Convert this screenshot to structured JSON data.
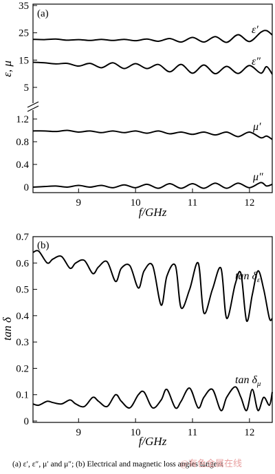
{
  "caption": "(a) ε′, ε″, μ′   and μ″; (b) Electrical and magnetic loss angles tangent",
  "watermark": "@有色金属在线",
  "chart_data": [
    {
      "type": "line",
      "panel": "(a)",
      "xlabel": "f/GHz",
      "ylabel": "ε, μ",
      "xlim": [
        8.2,
        12.4
      ],
      "x_ticks": [
        "9",
        "10",
        "11",
        "12"
      ],
      "grid": false,
      "broken_y_axis": true,
      "upper": {
        "ylim": [
          0,
          35
        ],
        "y_ticks": [
          "35",
          "25",
          "15",
          "5"
        ],
        "series": [
          {
            "name": "ε′",
            "x": [
              8.2,
              8.4,
              8.6,
              8.8,
              9.0,
              9.2,
              9.4,
              9.6,
              9.8,
              10.0,
              10.2,
              10.4,
              10.6,
              10.8,
              11.0,
              11.2,
              11.4,
              11.6,
              11.8,
              12.0,
              12.2,
              12.3,
              12.4
            ],
            "y": [
              22.6,
              22.5,
              22.7,
              22.3,
              22.5,
              22.2,
              22.6,
              22.2,
              22.6,
              22.1,
              22.7,
              21.9,
              22.9,
              21.6,
              23.3,
              21.6,
              23.6,
              21.5,
              24.3,
              21.8,
              25.2,
              25.8,
              24.2
            ]
          },
          {
            "name": "ε″",
            "x": [
              8.2,
              8.4,
              8.6,
              8.8,
              9.0,
              9.2,
              9.4,
              9.6,
              9.8,
              10.0,
              10.2,
              10.4,
              10.6,
              10.8,
              11.0,
              11.2,
              11.4,
              11.6,
              11.8,
              12.0,
              12.2,
              12.3,
              12.4
            ],
            "y": [
              14.2,
              14.0,
              13.6,
              13.8,
              12.8,
              13.8,
              12.2,
              14.0,
              11.9,
              13.7,
              11.9,
              13.4,
              10.7,
              13.4,
              10.2,
              13.2,
              10.0,
              12.7,
              10.1,
              13.0,
              10.2,
              12.6,
              9.8
            ]
          }
        ]
      },
      "lower": {
        "ylim": [
          -0.05,
          1.35
        ],
        "y_ticks": [
          "1.2",
          "0.8",
          "0.4",
          "0"
        ],
        "series": [
          {
            "name": "μ′",
            "x": [
              8.2,
              8.4,
              8.6,
              8.8,
              9.0,
              9.2,
              9.4,
              9.6,
              9.8,
              10.0,
              10.2,
              10.4,
              10.6,
              10.8,
              11.0,
              11.2,
              11.4,
              11.6,
              11.8,
              12.0,
              12.2,
              12.3,
              12.4
            ],
            "y": [
              0.99,
              0.99,
              0.98,
              1.0,
              0.97,
              0.99,
              0.96,
              0.99,
              0.96,
              0.99,
              0.95,
              0.99,
              0.94,
              0.97,
              0.93,
              0.97,
              0.92,
              0.97,
              0.89,
              0.97,
              0.87,
              0.9,
              0.84
            ]
          },
          {
            "name": "μ″",
            "x": [
              8.2,
              8.4,
              8.6,
              8.8,
              9.0,
              9.2,
              9.4,
              9.6,
              9.8,
              10.0,
              10.2,
              10.4,
              10.6,
              10.8,
              11.0,
              11.2,
              11.4,
              11.6,
              11.8,
              12.0,
              12.2,
              12.3,
              12.4
            ],
            "y": [
              0.0,
              0.01,
              0.02,
              0.0,
              0.03,
              0.0,
              0.03,
              -0.01,
              0.04,
              -0.01,
              0.05,
              -0.02,
              0.06,
              -0.02,
              0.06,
              -0.02,
              0.07,
              -0.02,
              0.07,
              -0.01,
              0.08,
              0.02,
              0.05
            ]
          }
        ]
      }
    },
    {
      "type": "line",
      "panel": "(b)",
      "xlabel": "f/GHz",
      "ylabel": "tan δ",
      "xlim": [
        8.2,
        12.4
      ],
      "ylim": [
        0,
        0.7
      ],
      "x_ticks": [
        "9",
        "10",
        "11",
        "12"
      ],
      "y_ticks": [
        "0.7",
        "0.6",
        "0.5",
        "0.4",
        "0.3",
        "0.2",
        "0.1",
        "0"
      ],
      "grid": false,
      "series": [
        {
          "name": "tan δε",
          "x": [
            8.2,
            8.3,
            8.45,
            8.55,
            8.7,
            8.85,
            8.95,
            9.1,
            9.25,
            9.35,
            9.5,
            9.65,
            9.75,
            9.9,
            10.05,
            10.15,
            10.3,
            10.45,
            10.55,
            10.7,
            10.8,
            10.95,
            11.1,
            11.2,
            11.35,
            11.5,
            11.6,
            11.75,
            11.85,
            11.95,
            12.05,
            12.15,
            12.25,
            12.35,
            12.4
          ],
          "y": [
            0.64,
            0.645,
            0.6,
            0.615,
            0.625,
            0.58,
            0.6,
            0.61,
            0.56,
            0.585,
            0.605,
            0.53,
            0.58,
            0.59,
            0.505,
            0.57,
            0.59,
            0.44,
            0.55,
            0.59,
            0.43,
            0.5,
            0.6,
            0.41,
            0.5,
            0.58,
            0.39,
            0.52,
            0.56,
            0.38,
            0.48,
            0.57,
            0.5,
            0.39,
            0.39
          ]
        },
        {
          "name": "tan δμ",
          "x": [
            8.2,
            8.3,
            8.45,
            8.55,
            8.7,
            8.85,
            8.95,
            9.1,
            9.25,
            9.35,
            9.5,
            9.65,
            9.75,
            9.9,
            10.05,
            10.15,
            10.3,
            10.45,
            10.55,
            10.7,
            10.8,
            10.95,
            11.1,
            11.2,
            11.35,
            11.5,
            11.6,
            11.75,
            11.85,
            11.95,
            12.05,
            12.15,
            12.25,
            12.35,
            12.4
          ],
          "y": [
            0.065,
            0.06,
            0.075,
            0.07,
            0.065,
            0.08,
            0.065,
            0.055,
            0.09,
            0.075,
            0.055,
            0.1,
            0.075,
            0.05,
            0.1,
            0.11,
            0.05,
            0.08,
            0.12,
            0.05,
            0.075,
            0.125,
            0.05,
            0.09,
            0.12,
            0.04,
            0.09,
            0.13,
            0.09,
            0.04,
            0.12,
            0.04,
            0.09,
            0.06,
            0.11
          ]
        }
      ]
    }
  ]
}
